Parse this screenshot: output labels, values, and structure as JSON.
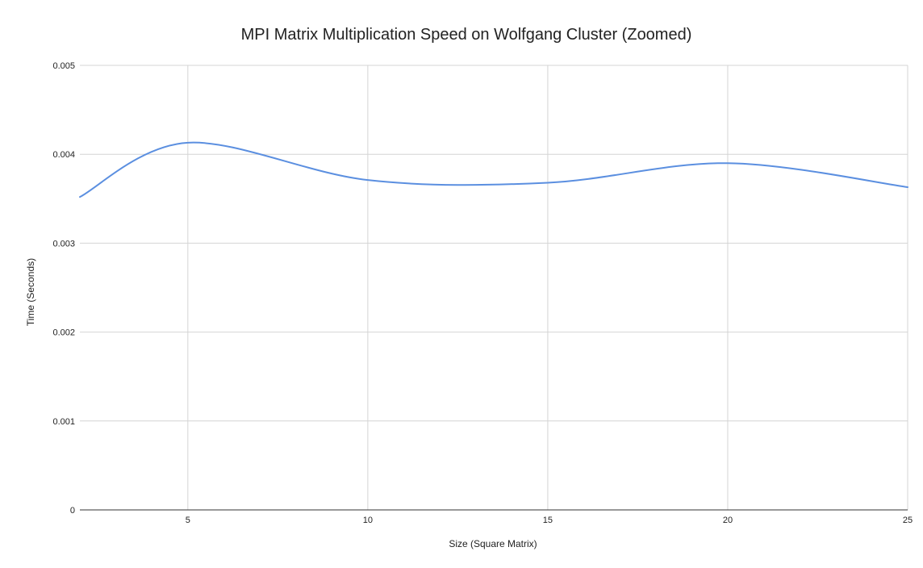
{
  "chart_data": {
    "type": "line",
    "title": "MPI Matrix Multiplication Speed on Wolfgang Cluster (Zoomed)",
    "xlabel": "Size (Square Matrix)",
    "ylabel": "Time (Seconds)",
    "xlim": [
      2,
      25
    ],
    "ylim": [
      0,
      0.005
    ],
    "x_ticks": [
      5,
      10,
      15,
      20,
      25
    ],
    "y_ticks": [
      0,
      0.001,
      0.002,
      0.003,
      0.004,
      0.005
    ],
    "x_tick_labels": [
      "5",
      "10",
      "15",
      "20",
      "25"
    ],
    "y_tick_labels": [
      "0",
      "0.001",
      "0.002",
      "0.003",
      "0.004",
      "0.005"
    ],
    "grid": true,
    "smooth": true,
    "legend": "none",
    "series": [
      {
        "color": "#5b8fe0",
        "x": [
          2,
          5,
          10,
          15,
          20,
          25
        ],
        "values": [
          0.00352,
          0.00413,
          0.00371,
          0.00368,
          0.0039,
          0.00363
        ]
      }
    ]
  }
}
